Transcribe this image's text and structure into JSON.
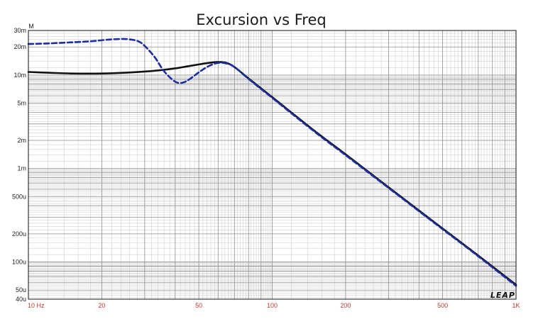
{
  "chart_data": {
    "type": "line",
    "title": "Excursion vs Freq",
    "ylabel": "M",
    "xlabel": "",
    "x_scale": "log",
    "y_scale": "log",
    "xlim": [
      10,
      1000
    ],
    "ylim": [
      4e-05,
      0.03
    ],
    "grid": true,
    "x_ticks": [
      {
        "value": 10,
        "label": "10 Hz"
      },
      {
        "value": 20,
        "label": "20"
      },
      {
        "value": 50,
        "label": "50"
      },
      {
        "value": 100,
        "label": "100"
      },
      {
        "value": 200,
        "label": "200"
      },
      {
        "value": 500,
        "label": "500"
      },
      {
        "value": 1000,
        "label": "1K"
      }
    ],
    "y_ticks": [
      {
        "value": 0.03,
        "label": "30m"
      },
      {
        "value": 0.02,
        "label": "20m"
      },
      {
        "value": 0.01,
        "label": "10m"
      },
      {
        "value": 0.005,
        "label": "5m"
      },
      {
        "value": 0.002,
        "label": "2m"
      },
      {
        "value": 0.001,
        "label": "1m"
      },
      {
        "value": 0.0005,
        "label": "500u"
      },
      {
        "value": 0.0002,
        "label": "200u"
      },
      {
        "value": 0.0001,
        "label": "100u"
      },
      {
        "value": 5e-05,
        "label": "50u"
      },
      {
        "value": 4e-05,
        "label": "40u"
      }
    ],
    "series": [
      {
        "style": "solid",
        "color": "#111111",
        "x": [
          10,
          12,
          15,
          20,
          25,
          30,
          35,
          40,
          45,
          50,
          55,
          60,
          65,
          70,
          80,
          100,
          150,
          200,
          300,
          500,
          700,
          1000
        ],
        "y": [
          0.0108,
          0.0106,
          0.0104,
          0.0104,
          0.0106,
          0.0109,
          0.0113,
          0.0118,
          0.0124,
          0.013,
          0.0135,
          0.0138,
          0.0135,
          0.0122,
          0.0092,
          0.0058,
          0.0025,
          0.00142,
          0.00063,
          0.000228,
          0.000117,
          5.7e-05
        ]
      },
      {
        "style": "dashed",
        "color": "#1a2ea8",
        "x": [
          10,
          12,
          15,
          18,
          20,
          22,
          25,
          28,
          30,
          33,
          36,
          40,
          43,
          46,
          50,
          55,
          60,
          65,
          70,
          80,
          100,
          150,
          200,
          300,
          500,
          700,
          1000
        ],
        "y": [
          0.0215,
          0.0218,
          0.0224,
          0.023,
          0.0236,
          0.0241,
          0.0243,
          0.0232,
          0.0205,
          0.0155,
          0.011,
          0.0085,
          0.0083,
          0.0091,
          0.0107,
          0.0125,
          0.0135,
          0.0133,
          0.0122,
          0.0091,
          0.0057,
          0.00245,
          0.00139,
          0.00062,
          0.000224,
          0.000115,
          5.55e-05
        ]
      }
    ],
    "logo_text": "LEAP",
    "colors": {
      "major_grid": "#8e8e8e",
      "minor_grid": "#c8c8c8",
      "frame": "#111111",
      "x_tick_text": "#c0392b"
    }
  }
}
